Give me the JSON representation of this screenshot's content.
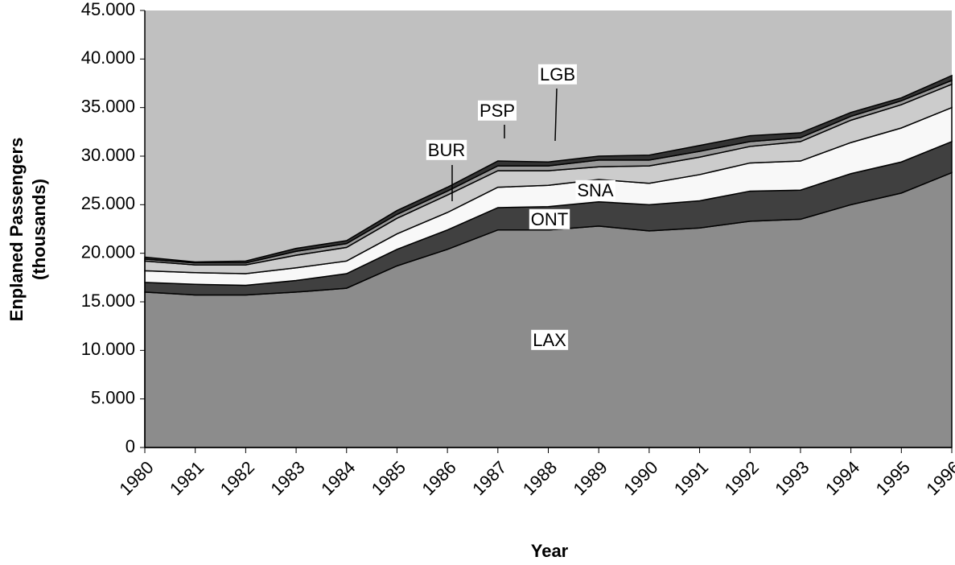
{
  "chart_data": {
    "type": "stacked_area",
    "x_label": "Year",
    "y_label": [
      "Enplaned Passengers",
      "(thousands)"
    ],
    "categories": [
      "1980",
      "1981",
      "1982",
      "1983",
      "1984",
      "1985",
      "1986",
      "1987",
      "1988",
      "1989",
      "1990",
      "1991",
      "1992",
      "1993",
      "1994",
      "1995",
      "1996"
    ],
    "series": [
      {
        "name": "LAX",
        "color": "#8c8c8c",
        "values": [
          16000,
          15700,
          15700,
          16000,
          16400,
          18700,
          20400,
          22400,
          22400,
          22800,
          22300,
          22600,
          23300,
          23500,
          25000,
          26200,
          28300
        ]
      },
      {
        "name": "ONT",
        "color": "#404040",
        "values": [
          1000,
          1100,
          1000,
          1200,
          1500,
          1700,
          2000,
          2300,
          2400,
          2500,
          2700,
          2800,
          3100,
          3000,
          3200,
          3200,
          3200
        ]
      },
      {
        "name": "SNA",
        "color": "#f8f8f8",
        "values": [
          1200,
          1200,
          1200,
          1300,
          1300,
          1600,
          1800,
          2100,
          2200,
          2300,
          2200,
          2700,
          2900,
          3000,
          3200,
          3500,
          3500
        ]
      },
      {
        "name": "BUR",
        "color": "#cccccc",
        "values": [
          1000,
          800,
          900,
          1300,
          1400,
          1600,
          1800,
          1700,
          1500,
          1300,
          1800,
          1800,
          1700,
          2000,
          2300,
          2400,
          2400
        ]
      },
      {
        "name": "PSP",
        "color": "#999999",
        "values": [
          200,
          200,
          200,
          400,
          400,
          400,
          400,
          500,
          500,
          700,
          600,
          600,
          500,
          400,
          400,
          400,
          400
        ]
      },
      {
        "name": "LGB",
        "color": "#333333",
        "values": [
          200,
          100,
          200,
          300,
          300,
          400,
          400,
          500,
          400,
          400,
          500,
          600,
          600,
          500,
          400,
          300,
          500
        ]
      }
    ],
    "ylim": [
      0,
      45000
    ],
    "yticks": [
      0,
      {
        "value": 5000,
        "label": "5.000"
      },
      {
        "value": 10000,
        "label": "10.000"
      },
      {
        "value": 15000,
        "label": "15.000"
      },
      {
        "value": 20000,
        "label": "20.000"
      },
      {
        "value": 25000,
        "label": "25.000"
      },
      {
        "value": 30000,
        "label": "30.000"
      },
      {
        "value": 35000,
        "label": "35.000"
      },
      {
        "value": 40000,
        "label": "40.000"
      },
      {
        "value": 45000,
        "label": "45.000"
      }
    ],
    "plot_background": "#c0c0c0"
  }
}
